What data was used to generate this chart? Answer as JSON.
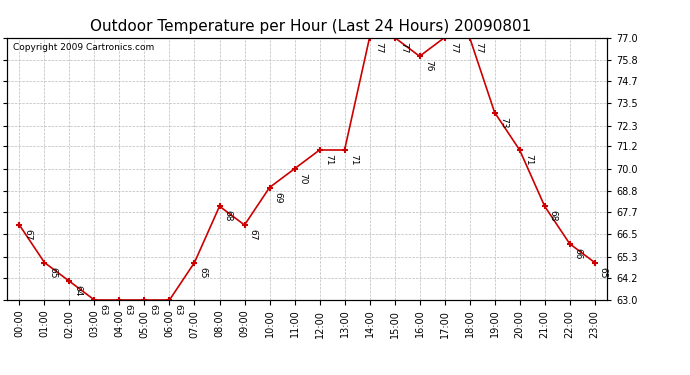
{
  "title": "Outdoor Temperature per Hour (Last 24 Hours) 20090801",
  "copyright": "Copyright 2009 Cartronics.com",
  "hours": [
    "00:00",
    "01:00",
    "02:00",
    "03:00",
    "04:00",
    "05:00",
    "06:00",
    "07:00",
    "08:00",
    "09:00",
    "10:00",
    "11:00",
    "12:00",
    "13:00",
    "14:00",
    "15:00",
    "16:00",
    "17:00",
    "18:00",
    "19:00",
    "20:00",
    "21:00",
    "22:00",
    "23:00"
  ],
  "temps": [
    67,
    65,
    64,
    63,
    63,
    63,
    63,
    65,
    68,
    67,
    69,
    70,
    71,
    71,
    77,
    77,
    76,
    77,
    77,
    73,
    71,
    68,
    66,
    65
  ],
  "line_color": "#cc0000",
  "marker_color": "#cc0000",
  "bg_color": "#ffffff",
  "grid_color": "#bbbbbb",
  "ylim_min": 63.0,
  "ylim_max": 77.0,
  "ytick_values": [
    63.0,
    64.2,
    65.3,
    66.5,
    67.7,
    68.8,
    70.0,
    71.2,
    72.3,
    73.5,
    74.7,
    75.8,
    77.0
  ],
  "title_fontsize": 11,
  "label_fontsize": 6.5,
  "tick_fontsize": 7,
  "copyright_fontsize": 6.5
}
